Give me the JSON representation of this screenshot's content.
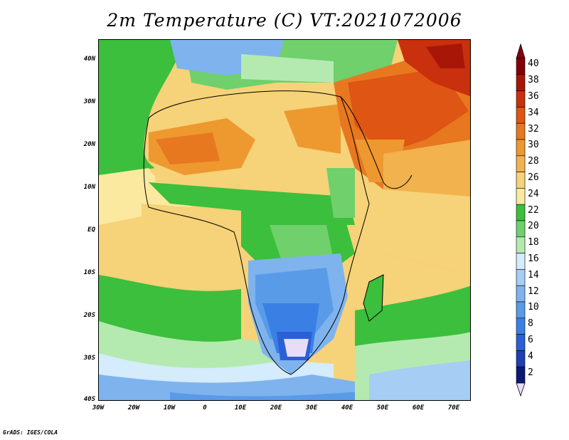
{
  "title": "2m Temperature (C) VT:2021072006",
  "credit": "GrADS: IGES/COLA",
  "map": {
    "lat_labels": [
      "40N",
      "30N",
      "20N",
      "10N",
      "EQ",
      "10S",
      "20S",
      "30S",
      "40S"
    ],
    "lon_labels": [
      "30W",
      "20W",
      "10W",
      "0",
      "10E",
      "20E",
      "30E",
      "40E",
      "50E",
      "60E",
      "70E"
    ]
  },
  "colorbar": {
    "levels": [
      "2",
      "4",
      "6",
      "8",
      "10",
      "12",
      "14",
      "16",
      "18",
      "20",
      "22",
      "24",
      "26",
      "28",
      "30",
      "32",
      "34",
      "36",
      "38",
      "40"
    ],
    "colors": [
      "#0b1a78",
      "#1f3fb4",
      "#2a5fd6",
      "#3a80e4",
      "#5a9be8",
      "#7fb3ee",
      "#a6cdf4",
      "#d4ecfb",
      "#b4eab0",
      "#6fd06c",
      "#3cbf3c",
      "#fbe9a0",
      "#f6d278",
      "#f2b24e",
      "#ee9830",
      "#e77820",
      "#de5514",
      "#c8300e",
      "#a81608",
      "#84000a"
    ],
    "under_color": "#e8dcf8",
    "over_color": "#84000a"
  }
}
